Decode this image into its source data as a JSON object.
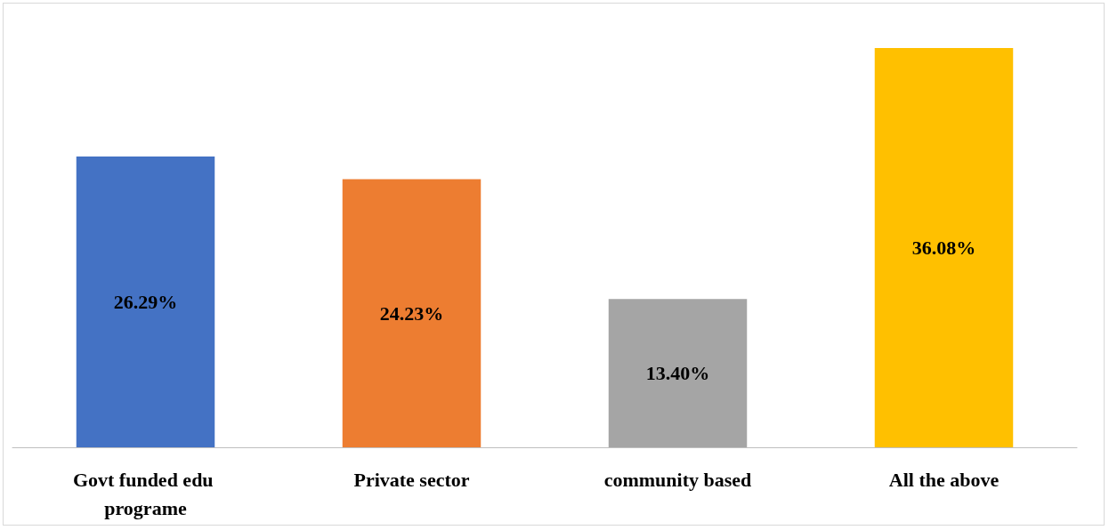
{
  "chart_data": {
    "type": "bar",
    "categories": [
      "Govt funded edu programe",
      "Private sector",
      "community based",
      "All the above"
    ],
    "values": [
      26.29,
      24.23,
      13.4,
      36.08
    ],
    "colors": [
      "#4472c4",
      "#ed7d31",
      "#a5a5a5",
      "#ffc000"
    ],
    "value_labels": [
      "26.29%",
      "24.23%",
      "13.40%",
      "36.08%"
    ]
  }
}
